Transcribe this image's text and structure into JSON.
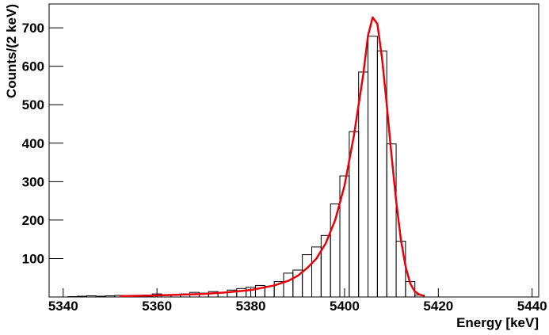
{
  "chart_data": {
    "type": "histogram",
    "xlabel": "Energy [keV]",
    "ylabel": "Counts/(2 keV)",
    "bins": [
      5341,
      5343,
      5345,
      5347,
      5349,
      5351,
      5353,
      5355,
      5357,
      5359,
      5361,
      5363,
      5365,
      5367,
      5369,
      5371,
      5373,
      5375,
      5377,
      5379,
      5381,
      5383,
      5385,
      5387,
      5389,
      5391,
      5393,
      5395,
      5397,
      5399,
      5401,
      5403,
      5405,
      5407,
      5409,
      5411,
      5413,
      5415,
      5417
    ],
    "values": [
      1,
      2,
      3,
      2,
      3,
      4,
      3,
      4,
      5,
      8,
      5,
      6,
      8,
      12,
      10,
      14,
      12,
      18,
      22,
      25,
      30,
      28,
      40,
      62,
      70,
      110,
      130,
      160,
      242,
      315,
      430,
      585,
      678,
      640,
      398,
      145,
      40,
      5
    ],
    "color": "#000000",
    "fit": {
      "color": "#e8000b",
      "x": [
        5352,
        5360,
        5370,
        5375,
        5380,
        5385,
        5388,
        5390,
        5392,
        5394,
        5396,
        5398,
        5400,
        5402,
        5404,
        5405,
        5406,
        5407,
        5408,
        5409,
        5410,
        5411,
        5412,
        5413,
        5414,
        5415,
        5416,
        5417
      ],
      "y": [
        2,
        4,
        8,
        12,
        18,
        30,
        42,
        55,
        75,
        100,
        140,
        200,
        290,
        420,
        580,
        680,
        727,
        710,
        620,
        500,
        370,
        250,
        150,
        80,
        35,
        14,
        6,
        3
      ]
    },
    "xlim": [
      5337,
      5441.4
    ],
    "ylim": [
      0,
      762
    ],
    "xticks": [
      5340,
      5360,
      5380,
      5400,
      5420,
      5440
    ],
    "yticks": [
      100,
      200,
      300,
      400,
      500,
      600,
      700
    ]
  }
}
